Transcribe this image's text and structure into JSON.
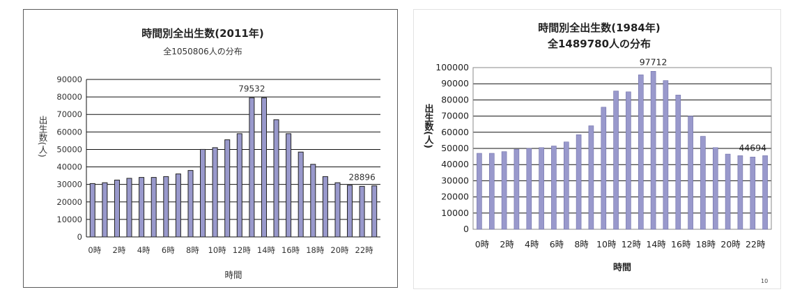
{
  "chart_data": [
    {
      "type": "bar",
      "title": "時間別全出生数(2011年)",
      "subtitle": "全1050806人の分布",
      "xlabel": "時間",
      "ylabel": "出生数(人)",
      "ylim": [
        0,
        90000
      ],
      "yticks": [
        "0",
        "10000",
        "20000",
        "30000",
        "40000",
        "50000",
        "60000",
        "70000",
        "80000",
        "90000"
      ],
      "categories": [
        "0時",
        "1時",
        "2時",
        "3時",
        "4時",
        "5時",
        "6時",
        "7時",
        "8時",
        "9時",
        "10時",
        "11時",
        "12時",
        "13時",
        "14時",
        "15時",
        "16時",
        "17時",
        "18時",
        "19時",
        "20時",
        "21時",
        "22時",
        "23時"
      ],
      "xtick_labels": [
        "0時",
        "2時",
        "4時",
        "6時",
        "8時",
        "10時",
        "12時",
        "14時",
        "16時",
        "18時",
        "20時",
        "22時"
      ],
      "values": [
        30500,
        31000,
        32500,
        33500,
        34000,
        34000,
        34500,
        36000,
        38000,
        50000,
        51000,
        55500,
        59000,
        79532,
        79532,
        67000,
        59000,
        48500,
        41500,
        34500,
        31000,
        29500,
        28896,
        29200
      ],
      "annotations": [
        {
          "index": 13,
          "text": "79532"
        },
        {
          "index": 22,
          "text": "28896"
        }
      ],
      "grid": true,
      "bar_color": "#9999cc"
    },
    {
      "type": "bar",
      "title": "時間別全出生数(1984年)",
      "subtitle": "全1489780人の分布",
      "xlabel": "時間",
      "ylabel": "出生数(人)",
      "ylim": [
        0,
        100000
      ],
      "yticks": [
        "0",
        "10000",
        "20000",
        "30000",
        "40000",
        "50000",
        "60000",
        "70000",
        "80000",
        "90000",
        "100000"
      ],
      "categories": [
        "0時",
        "1時",
        "2時",
        "3時",
        "4時",
        "5時",
        "6時",
        "7時",
        "8時",
        "9時",
        "10時",
        "11時",
        "12時",
        "13時",
        "14時",
        "15時",
        "16時",
        "17時",
        "18時",
        "19時",
        "20時",
        "21時",
        "22時",
        "23時"
      ],
      "xtick_labels": [
        "0時",
        "2時",
        "4時",
        "6時",
        "8時",
        "10時",
        "12時",
        "14時",
        "16時",
        "18時",
        "20時",
        "22時"
      ],
      "values": [
        47000,
        47000,
        48000,
        49500,
        50000,
        50500,
        51500,
        54000,
        58500,
        64000,
        75500,
        85500,
        85000,
        95500,
        97712,
        92000,
        83000,
        70000,
        57500,
        50500,
        46500,
        45500,
        44694,
        45500
      ],
      "annotations": [
        {
          "index": 14,
          "text": "97712"
        },
        {
          "index": 22,
          "text": "44694"
        }
      ],
      "grid": true,
      "bar_color": "#9999cc"
    }
  ],
  "page_number": "10"
}
